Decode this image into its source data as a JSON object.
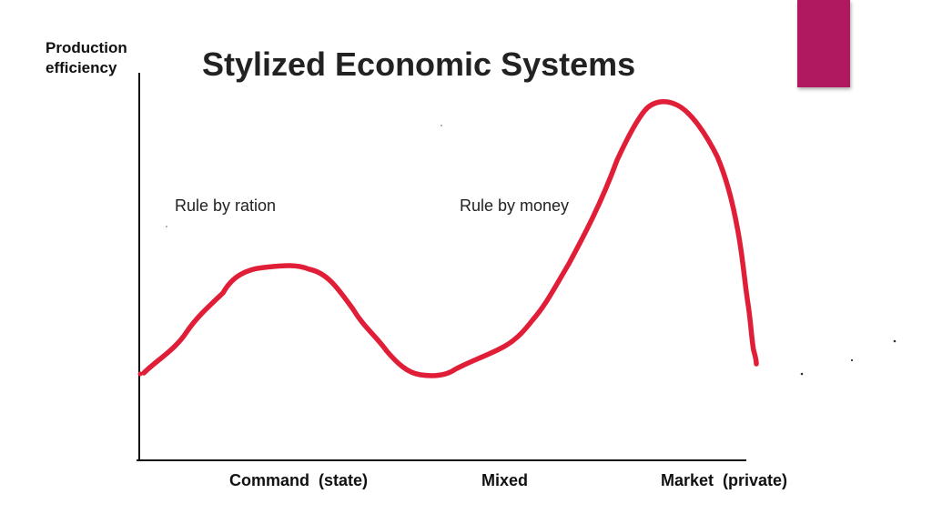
{
  "slide": {
    "title": "Stylized Economic Systems",
    "y_axis_label_line1": "Production",
    "y_axis_label_line2": "efficiency",
    "annotations": {
      "ration": "Rule by ration",
      "money": "Rule by money"
    },
    "x_axis_labels": {
      "command": "Command  (state)",
      "mixed": "Mixed",
      "market": "Market  (private)"
    }
  },
  "colors": {
    "curve": "#e01e37",
    "accent": "#b0185f",
    "axis": "#111111"
  },
  "icons": {
    "accent_block": "magenta-rectangle"
  }
}
